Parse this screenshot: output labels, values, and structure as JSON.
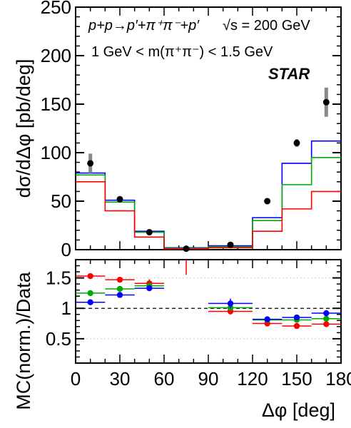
{
  "chart_data": [
    {
      "type": "line",
      "ylabel": "dσ/dΔφ [pb/deg]",
      "ylim": [
        0,
        250
      ],
      "yticks": [
        0,
        50,
        100,
        150,
        200,
        250
      ],
      "xlim": [
        0,
        180
      ],
      "annotations": {
        "process": "p+p→p′+π⁺π⁻+p′",
        "energy": "√s = 200 GeV",
        "mass_range": "1 GeV < m(π⁺π⁻) < 1.5 GeV",
        "experiment": "STAR"
      },
      "data_points": {
        "x": [
          10,
          30,
          50,
          75,
          105,
          130,
          150,
          170
        ],
        "y": [
          89,
          52,
          18,
          1,
          5,
          50,
          110,
          152
        ],
        "syst_err": [
          10,
          2,
          2,
          0.5,
          0.7,
          3,
          4,
          15
        ]
      },
      "bin_edges": [
        0,
        20,
        40,
        60,
        90,
        120,
        140,
        160,
        180
      ],
      "series": [
        {
          "color": "#0000ff",
          "values": [
            79,
            51,
            19,
            2,
            4,
            33,
            89,
            112
          ]
        },
        {
          "color": "#00aa00",
          "values": [
            77,
            49,
            18,
            1.5,
            3,
            30,
            67,
            95
          ]
        },
        {
          "color": "#ff0000",
          "values": [
            70,
            40,
            13,
            1,
            2,
            19,
            42,
            60
          ]
        }
      ]
    },
    {
      "type": "scatter",
      "ylabel": "MC(norm.)/Data",
      "xlabel": "Δφ [deg]",
      "xlim": [
        0,
        180
      ],
      "ylim": [
        0.1,
        1.8
      ],
      "yticks": [
        0.5,
        1,
        1.5
      ],
      "ytick_labels": [
        "0.5",
        "1",
        "1.5"
      ],
      "xticks": [
        0,
        30,
        60,
        90,
        120,
        150,
        180
      ],
      "xtick_labels": [
        "0",
        "30",
        "60",
        "90",
        "120",
        "150",
        "180"
      ],
      "reference_line": 1,
      "bins": [
        {
          "x": 10,
          "xerr": 10
        },
        {
          "x": 30,
          "xerr": 10
        },
        {
          "x": 50,
          "xerr": 10
        },
        {
          "x": 105,
          "xerr": 15
        },
        {
          "x": 130,
          "xerr": 10
        },
        {
          "x": 150,
          "xerr": 10
        },
        {
          "x": 170,
          "xerr": 10
        }
      ],
      "series": [
        {
          "color": "#ff0000",
          "values": [
            1.53,
            1.47,
            1.41,
            0.95,
            0.75,
            0.71,
            0.74
          ],
          "yerr": [
            0.02,
            0.02,
            0.07,
            0.05,
            0.03,
            0.02,
            0.02
          ]
        },
        {
          "color": "#00aa00",
          "values": [
            1.25,
            1.32,
            1.37,
            1.01,
            0.81,
            0.81,
            0.83
          ],
          "yerr": [
            0.02,
            0.02,
            0.03,
            0.04,
            0.02,
            0.02,
            0.02
          ]
        },
        {
          "color": "#0000ff",
          "values": [
            1.1,
            1.22,
            1.33,
            1.08,
            0.82,
            0.85,
            0.92
          ],
          "yerr": [
            0.02,
            0.02,
            0.03,
            0.08,
            0.02,
            0.03,
            0.05
          ]
        }
      ],
      "outlier_marker": {
        "x": 75,
        "y_low": 1.55,
        "y_high": 1.8,
        "color": "#ff0000"
      }
    }
  ]
}
